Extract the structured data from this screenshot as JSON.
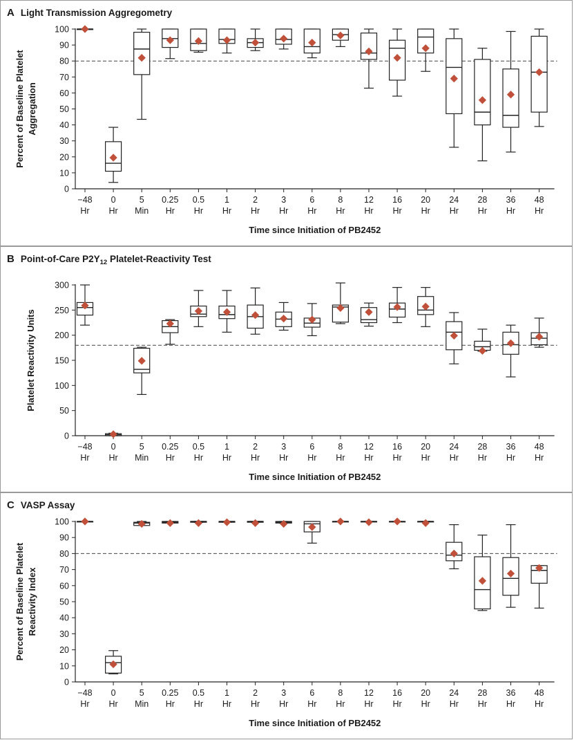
{
  "panels": [
    {
      "letter": "A",
      "title": "Light Transmission Aggregometry",
      "chart_data": {
        "type": "boxplot",
        "title": "Light Transmission Aggregometry",
        "xlabel": "Time since Initiation of PB2452",
        "ylabel": [
          "Percent of Baseline Platelet",
          "Aggregation"
        ],
        "ylim": [
          0,
          100
        ],
        "yticks": [
          0,
          10,
          20,
          30,
          40,
          50,
          60,
          70,
          80,
          90,
          100
        ],
        "reference_line": 80,
        "marker_color": "#c0503a",
        "categories": [
          [
            "−48",
            "Hr"
          ],
          [
            "0",
            "Hr"
          ],
          [
            "5",
            "Min"
          ],
          [
            "0.25",
            "Hr"
          ],
          [
            "0.5",
            "Hr"
          ],
          [
            "1",
            "Hr"
          ],
          [
            "2",
            "Hr"
          ],
          [
            "3",
            "Hr"
          ],
          [
            "6",
            "Hr"
          ],
          [
            "8",
            "Hr"
          ],
          [
            "12",
            "Hr"
          ],
          [
            "16",
            "Hr"
          ],
          [
            "20",
            "Hr"
          ],
          [
            "24",
            "Hr"
          ],
          [
            "28",
            "Hr"
          ],
          [
            "36",
            "Hr"
          ],
          [
            "48",
            "Hr"
          ]
        ],
        "boxes": [
          {
            "min": 100,
            "q1": 100,
            "median": 100,
            "q3": 100,
            "max": 100,
            "mean": 100
          },
          {
            "min": 4,
            "q1": 11,
            "median": 16,
            "q3": 29.5,
            "max": 38.5,
            "mean": 19.5
          },
          {
            "min": 43.5,
            "q1": 71.5,
            "median": 87.5,
            "q3": 98,
            "max": 100,
            "mean": 82
          },
          {
            "min": 81.5,
            "q1": 88.5,
            "median": 94,
            "q3": 100,
            "max": 100,
            "mean": 93
          },
          {
            "min": 85.5,
            "q1": 86.5,
            "median": 91,
            "q3": 100,
            "max": 100,
            "mean": 92.5
          },
          {
            "min": 85,
            "q1": 91,
            "median": 93.5,
            "q3": 100,
            "max": 100,
            "mean": 93
          },
          {
            "min": 86.5,
            "q1": 88.5,
            "median": 91.5,
            "q3": 94,
            "max": 100,
            "mean": 91.5
          },
          {
            "min": 87.5,
            "q1": 90.5,
            "median": 93.5,
            "q3": 100,
            "max": 100,
            "mean": 94
          },
          {
            "min": 82,
            "q1": 85,
            "median": 89,
            "q3": 100,
            "max": 100,
            "mean": 91.5
          },
          {
            "min": 89,
            "q1": 93,
            "median": 96.5,
            "q3": 100,
            "max": 100,
            "mean": 96
          },
          {
            "min": 63,
            "q1": 81,
            "median": 85,
            "q3": 97.5,
            "max": 100,
            "mean": 86
          },
          {
            "min": 58,
            "q1": 68,
            "median": 88,
            "q3": 93,
            "max": 100,
            "mean": 82
          },
          {
            "min": 73.5,
            "q1": 85,
            "median": 95,
            "q3": 100,
            "max": 100,
            "mean": 88
          },
          {
            "min": 26,
            "q1": 47,
            "median": 76,
            "q3": 94,
            "max": 100,
            "mean": 69
          },
          {
            "min": 17.5,
            "q1": 40,
            "median": 48,
            "q3": 81,
            "max": 88,
            "mean": 55.5
          },
          {
            "min": 23,
            "q1": 38.5,
            "median": 46,
            "q3": 75,
            "max": 98.5,
            "mean": 59
          },
          {
            "min": 39,
            "q1": 48,
            "median": 73,
            "q3": 95.5,
            "max": 100,
            "mean": 73
          }
        ]
      }
    },
    {
      "letter": "B",
      "title": "Point-of-Care P2Y",
      "title_sub": "12",
      "title_rest": " Platelet-Reactivity Test",
      "chart_data": {
        "type": "boxplot",
        "title": "Point-of-Care P2Y12 Platelet-Reactivity Test",
        "xlabel": "Time since Initiation of PB2452",
        "ylabel": [
          "Platelet Reactivity Units"
        ],
        "ylim": [
          0,
          300
        ],
        "yticks": [
          0,
          50,
          100,
          150,
          200,
          250,
          300
        ],
        "reference_line": 180,
        "marker_color": "#c0503a",
        "categories": [
          [
            "−48",
            "Hr"
          ],
          [
            "0",
            "Hr"
          ],
          [
            "5",
            "Min"
          ],
          [
            "0.25",
            "Hr"
          ],
          [
            "0.5",
            "Hr"
          ],
          [
            "1",
            "Hr"
          ],
          [
            "2",
            "Hr"
          ],
          [
            "3",
            "Hr"
          ],
          [
            "6",
            "Hr"
          ],
          [
            "8",
            "Hr"
          ],
          [
            "12",
            "Hr"
          ],
          [
            "16",
            "Hr"
          ],
          [
            "20",
            "Hr"
          ],
          [
            "24",
            "Hr"
          ],
          [
            "28",
            "Hr"
          ],
          [
            "36",
            "Hr"
          ],
          [
            "48",
            "Hr"
          ]
        ],
        "boxes": [
          {
            "min": 220,
            "q1": 240,
            "median": 255,
            "q3": 265,
            "max": 300,
            "mean": 259
          },
          {
            "min": 0,
            "q1": 0,
            "median": 2,
            "q3": 4,
            "max": 5,
            "mean": 3
          },
          {
            "min": 82,
            "q1": 125,
            "median": 132,
            "q3": 174,
            "max": 176,
            "mean": 149
          },
          {
            "min": 182,
            "q1": 205,
            "median": 217,
            "q3": 229,
            "max": 231,
            "mean": 223
          },
          {
            "min": 217,
            "q1": 237,
            "median": 242,
            "q3": 258,
            "max": 289,
            "mean": 248
          },
          {
            "min": 206,
            "q1": 233,
            "median": 241,
            "q3": 258,
            "max": 289,
            "mean": 246
          },
          {
            "min": 202,
            "q1": 214,
            "median": 237,
            "q3": 260,
            "max": 294,
            "mean": 240
          },
          {
            "min": 210,
            "q1": 217,
            "median": 232,
            "q3": 246,
            "max": 265,
            "mean": 233
          },
          {
            "min": 199,
            "q1": 216,
            "median": 224,
            "q3": 234,
            "max": 263,
            "mean": 231
          },
          {
            "min": 223,
            "q1": 226,
            "median": 256,
            "q3": 260,
            "max": 304,
            "mean": 254
          },
          {
            "min": 218,
            "q1": 225,
            "median": 231,
            "q3": 255,
            "max": 264,
            "mean": 246
          },
          {
            "min": 225,
            "q1": 236,
            "median": 252,
            "q3": 264,
            "max": 295,
            "mean": 256
          },
          {
            "min": 217,
            "q1": 241,
            "median": 250,
            "q3": 277,
            "max": 295,
            "mean": 257
          },
          {
            "min": 143,
            "q1": 171,
            "median": 206,
            "q3": 227,
            "max": 245,
            "mean": 199
          },
          {
            "min": 168,
            "q1": 170,
            "median": 177,
            "q3": 188,
            "max": 212,
            "mean": 169
          },
          {
            "min": 117,
            "q1": 162,
            "median": 181,
            "q3": 206,
            "max": 220,
            "mean": 184
          },
          {
            "min": 176,
            "q1": 181,
            "median": 194,
            "q3": 205,
            "max": 234,
            "mean": 197
          }
        ]
      }
    },
    {
      "letter": "C",
      "title": "VASP Assay",
      "chart_data": {
        "type": "boxplot",
        "title": "VASP Assay",
        "xlabel": "Time since Initiation of PB2452",
        "ylabel": [
          "Percent of Baseline Platelet",
          "Reactivity Index"
        ],
        "ylim": [
          0,
          100
        ],
        "yticks": [
          0,
          10,
          20,
          30,
          40,
          50,
          60,
          70,
          80,
          90,
          100
        ],
        "reference_line": 80,
        "marker_color": "#c0503a",
        "categories": [
          [
            "−48",
            "Hr"
          ],
          [
            "0",
            "Hr"
          ],
          [
            "5",
            "Min"
          ],
          [
            "0.25",
            "Hr"
          ],
          [
            "0.5",
            "Hr"
          ],
          [
            "1",
            "Hr"
          ],
          [
            "2",
            "Hr"
          ],
          [
            "3",
            "Hr"
          ],
          [
            "6",
            "Hr"
          ],
          [
            "8",
            "Hr"
          ],
          [
            "12",
            "Hr"
          ],
          [
            "16",
            "Hr"
          ],
          [
            "20",
            "Hr"
          ],
          [
            "24",
            "Hr"
          ],
          [
            "28",
            "Hr"
          ],
          [
            "36",
            "Hr"
          ],
          [
            "48",
            "Hr"
          ]
        ],
        "boxes": [
          {
            "min": 100,
            "q1": 100,
            "median": 100,
            "q3": 100,
            "max": 100,
            "mean": 100
          },
          {
            "min": 5,
            "q1": 5.5,
            "median": 12,
            "q3": 16,
            "max": 19.5,
            "mean": 11
          },
          {
            "min": 97.5,
            "q1": 97.5,
            "median": 99,
            "q3": 99.5,
            "max": 100,
            "mean": 98.5
          },
          {
            "min": 99,
            "q1": 99,
            "median": 99.5,
            "q3": 100,
            "max": 100,
            "mean": 99
          },
          {
            "min": 99.5,
            "q1": 99.5,
            "median": 100,
            "q3": 100,
            "max": 100,
            "mean": 99
          },
          {
            "min": 99.5,
            "q1": 99.5,
            "median": 100,
            "q3": 100,
            "max": 100,
            "mean": 99.5
          },
          {
            "min": 99.5,
            "q1": 99.5,
            "median": 100,
            "q3": 100,
            "max": 100,
            "mean": 99
          },
          {
            "min": 99,
            "q1": 99,
            "median": 99.5,
            "q3": 100,
            "max": 100,
            "mean": 98.5
          },
          {
            "min": 86.5,
            "q1": 93.5,
            "median": 98.5,
            "q3": 100,
            "max": 100,
            "mean": 96.5
          },
          {
            "min": 100,
            "q1": 100,
            "median": 100,
            "q3": 100,
            "max": 100,
            "mean": 100
          },
          {
            "min": 100,
            "q1": 100,
            "median": 100,
            "q3": 100,
            "max": 100,
            "mean": 99.5
          },
          {
            "min": 100,
            "q1": 100,
            "median": 100,
            "q3": 100,
            "max": 100,
            "mean": 100
          },
          {
            "min": 100,
            "q1": 100,
            "median": 100,
            "q3": 100,
            "max": 100,
            "mean": 99
          },
          {
            "min": 70.5,
            "q1": 75.5,
            "median": 79,
            "q3": 87,
            "max": 98,
            "mean": 80
          },
          {
            "min": 44.5,
            "q1": 45.5,
            "median": 57.5,
            "q3": 78,
            "max": 91.5,
            "mean": 63
          },
          {
            "min": 46.5,
            "q1": 54,
            "median": 64.5,
            "q3": 77.5,
            "max": 98,
            "mean": 67.5
          },
          {
            "min": 46,
            "q1": 61.5,
            "median": 69.5,
            "q3": 72.5,
            "max": 72.5,
            "mean": 71
          }
        ]
      }
    }
  ]
}
